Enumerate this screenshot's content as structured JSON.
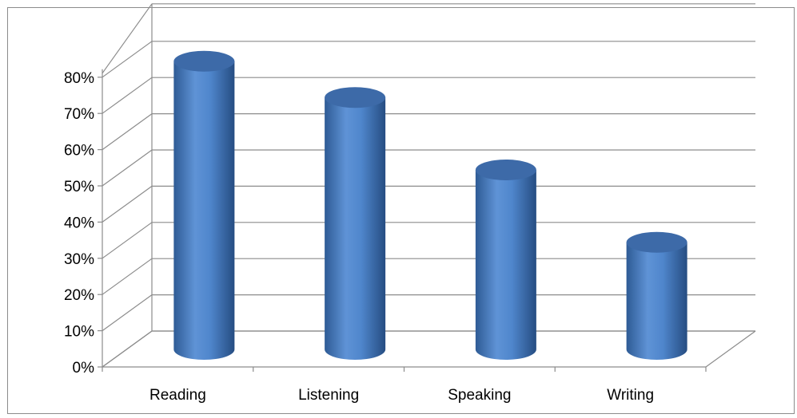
{
  "chart_data": {
    "type": "bar",
    "style": "3d-cylinder",
    "categories": [
      "Reading",
      "Listening",
      "Speaking",
      "Writing"
    ],
    "values": [
      80,
      70,
      50,
      30
    ],
    "ylim": [
      0,
      80
    ],
    "yticks": [
      "0%",
      "10%",
      "20%",
      "30%",
      "40%",
      "50%",
      "60%",
      "70%",
      "80%"
    ],
    "grid": true,
    "legend": "none",
    "colors": {
      "bar_light": "#6f9bd6",
      "bar_mid": "#4f81bd",
      "bar_dark": "#2f5a8f",
      "grid": "#8c8c8c",
      "frame": "#8c8c8c"
    }
  }
}
